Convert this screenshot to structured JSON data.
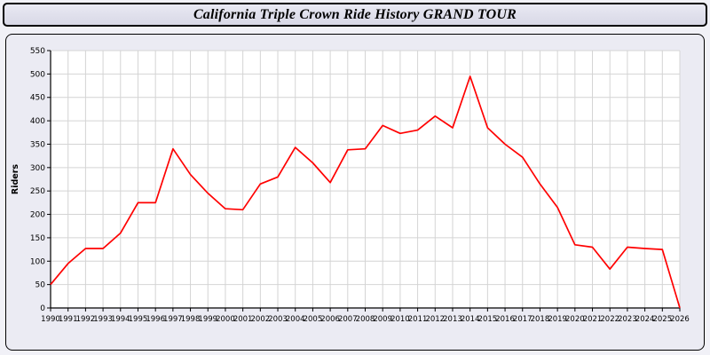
{
  "header": {
    "title": "California Triple Crown Ride History GRAND TOUR"
  },
  "colors": {
    "line": "#ff0000",
    "plot_background": "#ffffff",
    "grid": "#d4d4d4",
    "panel_background": "#ebebf3",
    "title_bar_background": "#dedeea",
    "axis": "#000000"
  },
  "chart_data": {
    "type": "line",
    "title": "California Triple Crown Ride History GRAND TOUR",
    "xlabel": "",
    "ylabel": "Riders",
    "ylim": [
      0,
      550
    ],
    "ytick_step": 50,
    "grid": true,
    "legend": "none",
    "x": [
      1990,
      1991,
      1992,
      1993,
      1994,
      1995,
      1996,
      1997,
      1998,
      1999,
      2000,
      2001,
      2002,
      2003,
      2004,
      2005,
      2006,
      2007,
      2008,
      2009,
      2010,
      2011,
      2012,
      2013,
      2014,
      2015,
      2016,
      2017,
      2018,
      2019,
      2020,
      2021,
      2022,
      2023,
      2024,
      2025,
      2026
    ],
    "series": [
      {
        "name": "Riders",
        "color": "#ff0000",
        "values": [
          50,
          95,
          127,
          127,
          160,
          225,
          225,
          340,
          285,
          245,
          212,
          210,
          265,
          280,
          343,
          310,
          268,
          338,
          340,
          390,
          373,
          380,
          410,
          385,
          495,
          385,
          350,
          322,
          265,
          215,
          135,
          130,
          83,
          130,
          127,
          125,
          0
        ]
      }
    ]
  }
}
